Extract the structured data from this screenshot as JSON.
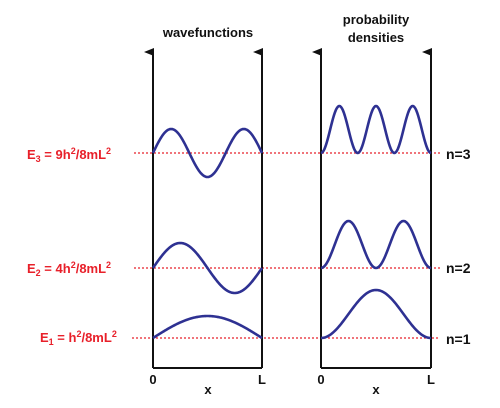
{
  "titles": {
    "wavefunctions": "wavefunctions",
    "probability_line1": "probability",
    "probability_line2": "densities"
  },
  "levels": [
    {
      "n": 3,
      "n_label": "n=3",
      "e_sub": "3",
      "e_value": "9h",
      "e_rest": "/8mL",
      "e_prefix_small": ""
    },
    {
      "n": 2,
      "n_label": "n=2",
      "e_sub": "2",
      "e_value": "4h",
      "e_rest": "/8mL",
      "e_prefix_small": ""
    },
    {
      "n": 1,
      "n_label": "n=1",
      "e_sub": "1",
      "e_value": "h",
      "e_rest": "/8mL",
      "e_prefix_small": ""
    }
  ],
  "energy_labels": {
    "E3": {
      "E": "E",
      "sub": "3",
      "eq": " = 9h",
      "sup1": "2",
      "mid": "/8mL",
      "sup2": "2"
    },
    "E2": {
      "E": "E",
      "sub": "2",
      "eq": " = 4h",
      "sup1": "2",
      "mid": "/8mL",
      "sup2": "2"
    },
    "E1": {
      "E": "E",
      "sub": "1",
      "eq": " = h",
      "sup1": "2",
      "mid": "/8mL",
      "sup2": "2"
    }
  },
  "axis_labels": {
    "left": {
      "zero": "0",
      "x": "x",
      "L": "L"
    },
    "right": {
      "zero": "0",
      "x": "x",
      "L": "L"
    }
  },
  "colors": {
    "curve": "#2e3192",
    "energy": "#e8202a",
    "axis": "#111111",
    "dotted": "#e8202a"
  }
}
